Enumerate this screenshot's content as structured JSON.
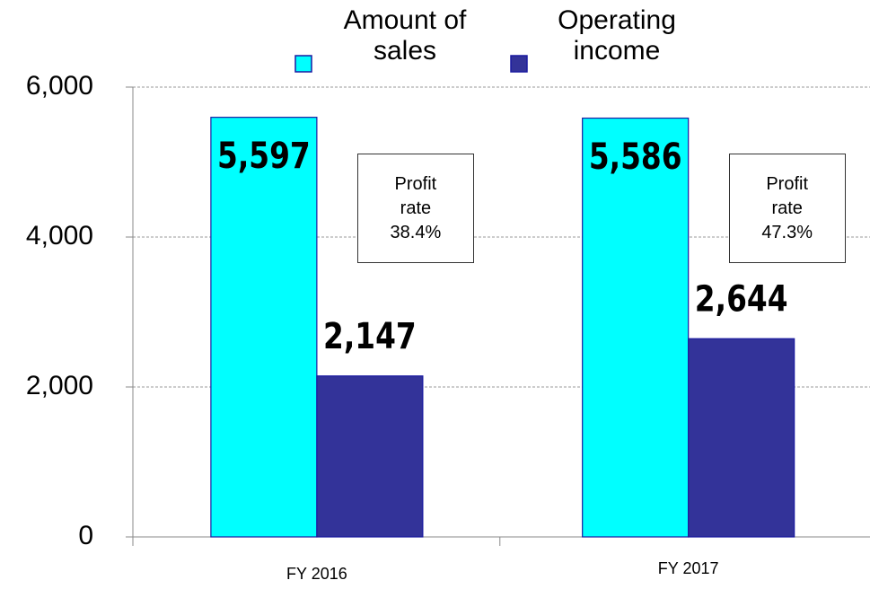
{
  "chart_data": {
    "type": "bar",
    "categories": [
      "FY 2016",
      "FY 2017"
    ],
    "series": [
      {
        "name": "Amount of sales",
        "color": "#00ffff",
        "values": [
          5597,
          5586
        ],
        "value_labels": [
          "5,597",
          "5,586"
        ]
      },
      {
        "name": "Operating income",
        "color": "#333399",
        "values": [
          2147,
          2644
        ],
        "value_labels": [
          "2,147",
          "2,644"
        ]
      }
    ],
    "ylim": [
      0,
      6000
    ],
    "yticks": [
      0,
      {
        "value": 2000,
        "label": "2,000"
      },
      {
        "value": 4000,
        "label": "4,000"
      },
      {
        "value": 6000,
        "label": "6,000"
      }
    ],
    "grid": true,
    "legend": "top",
    "annotations": [
      "Profit rate 38.4%",
      "Profit rate 47.3%"
    ]
  }
}
